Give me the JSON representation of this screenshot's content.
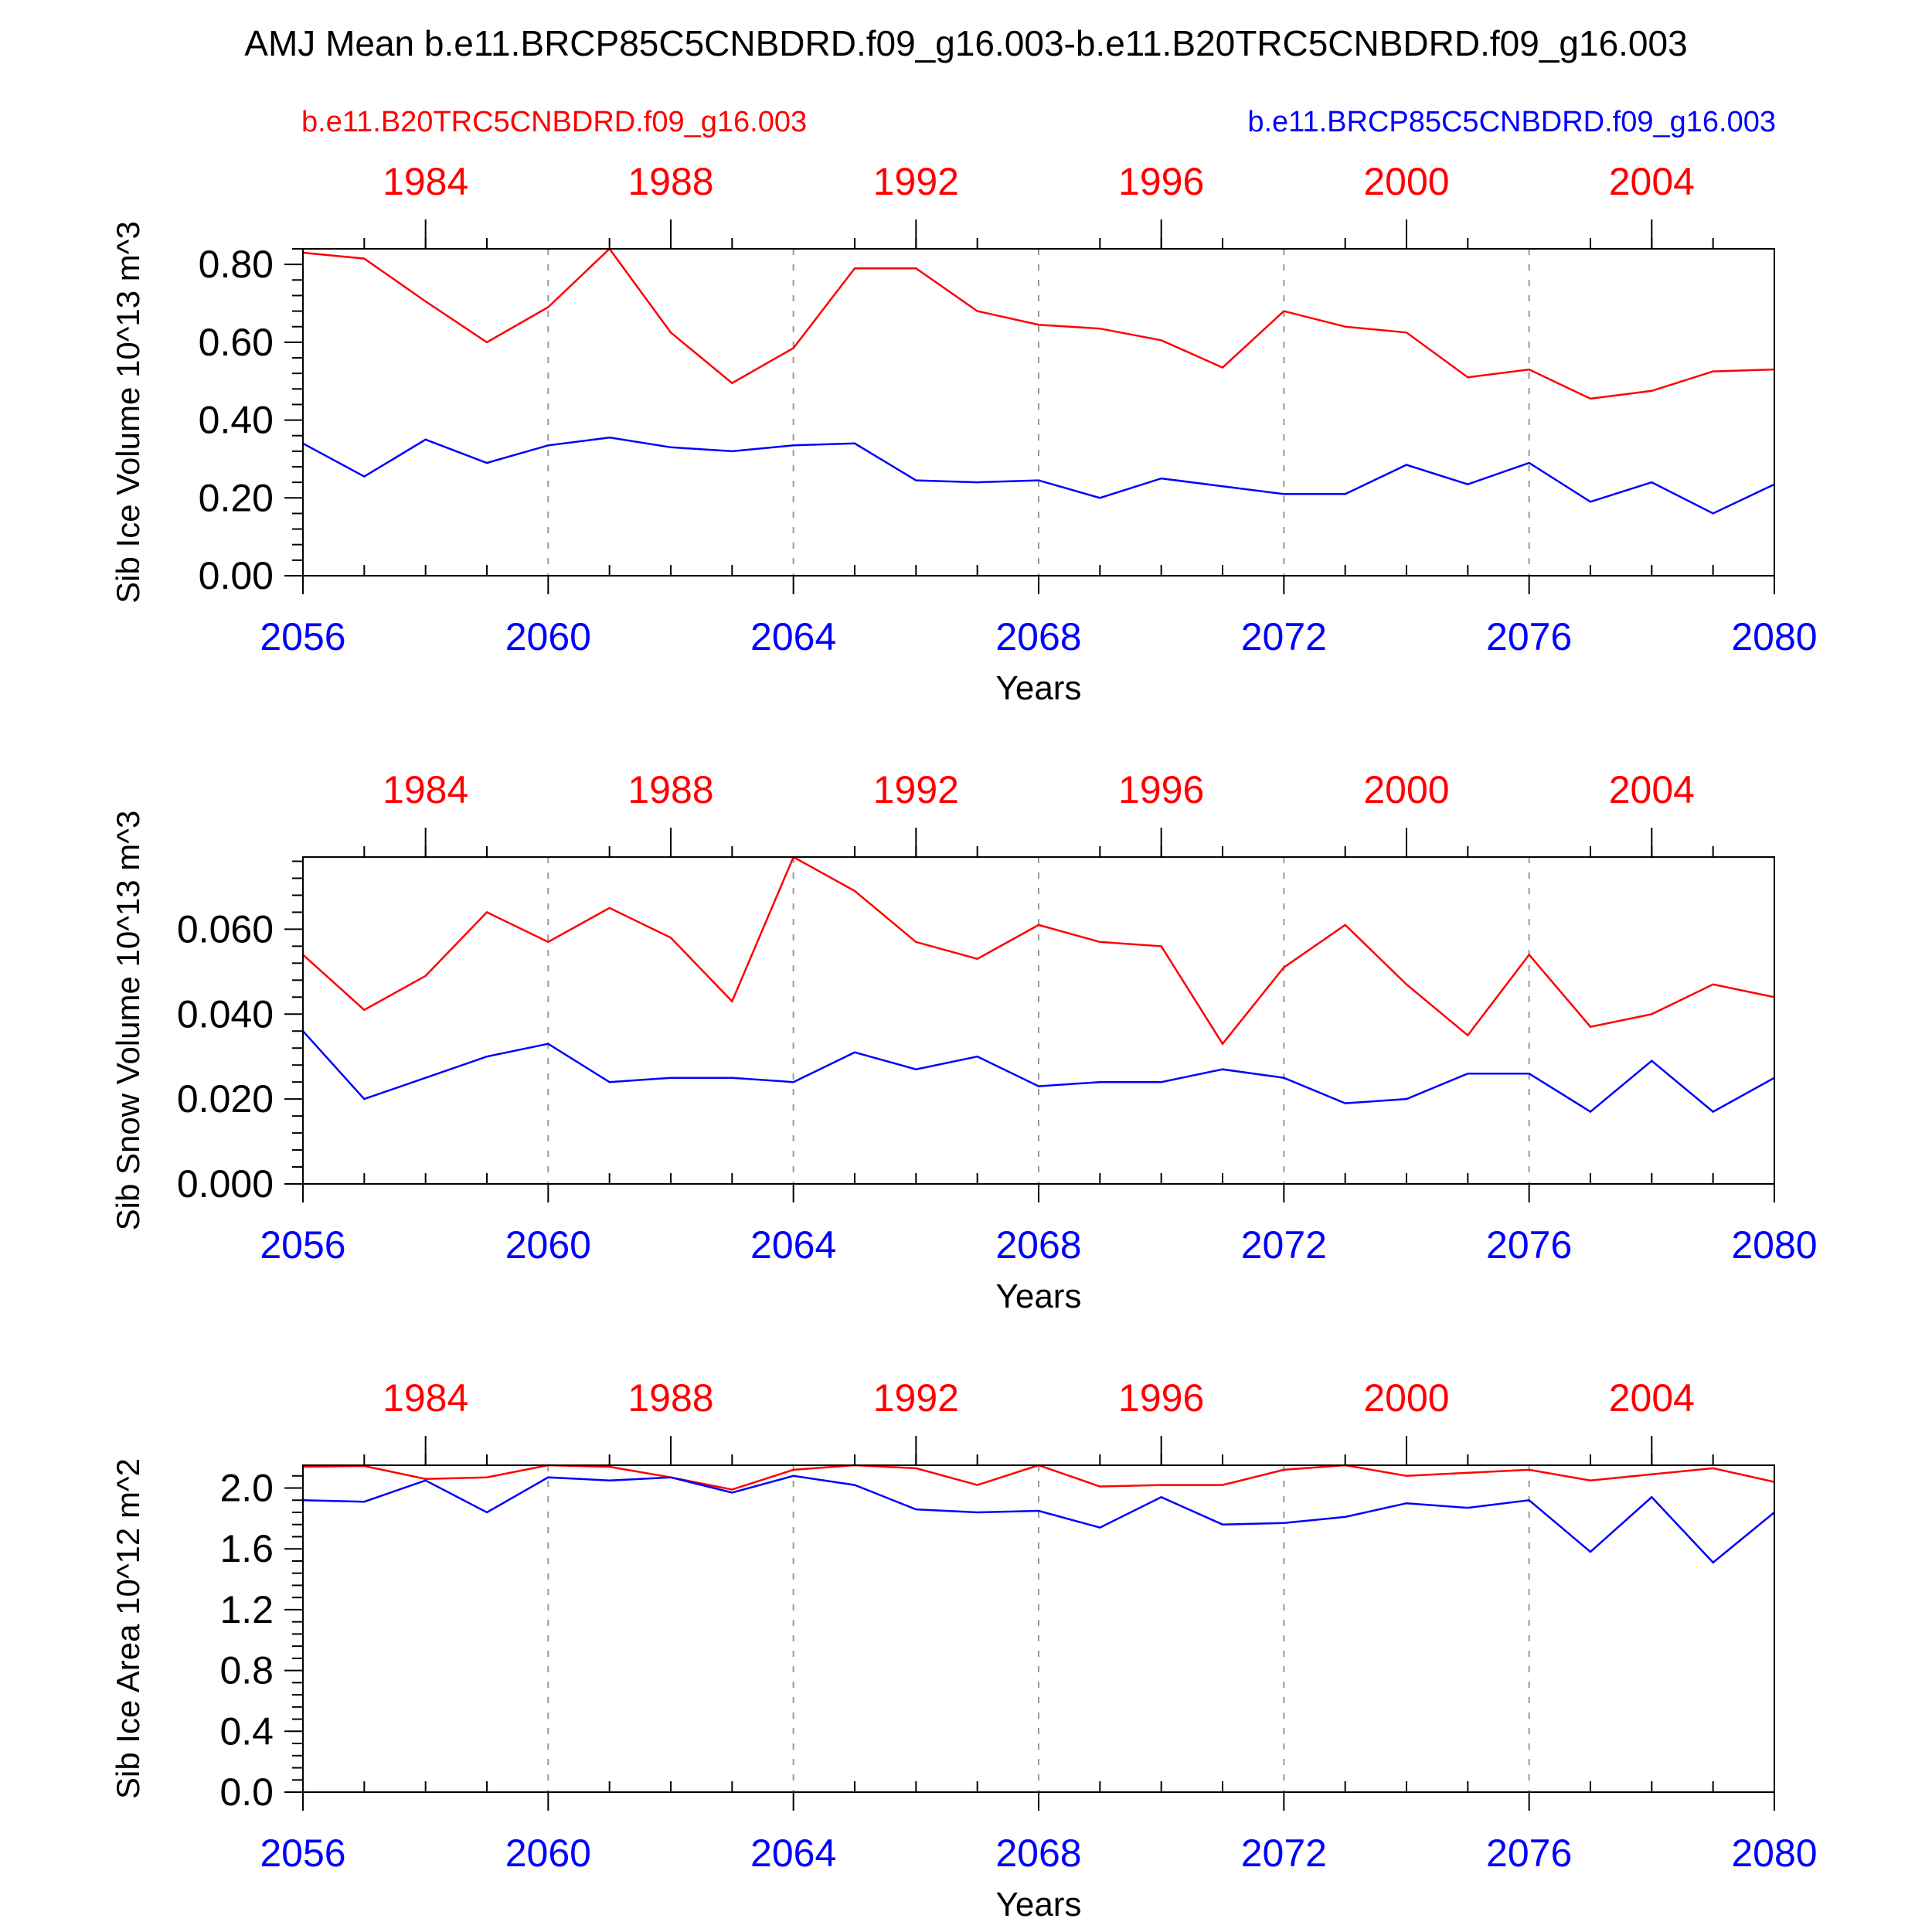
{
  "title": "AMJ Mean b.e11.BRCP85C5CNBDRD.f09_g16.003-b.e11.B20TRC5CNBDRD.f09_g16.003",
  "legend": {
    "red": "b.e11.B20TRC5CNBDRD.f09_g16.003",
    "blue": "b.e11.BRCP85C5CNBDRD.f09_g16.003"
  },
  "colors": {
    "red": "#ff0000",
    "blue": "#0000ff",
    "axis": "#000000",
    "grid": "#999999"
  },
  "chart_data": [
    {
      "type": "line",
      "ylabel": "Sib Ice Volume 10^13 m^3",
      "xlabel": "Years",
      "xlim": [
        2056,
        2080
      ],
      "ylim": [
        0,
        0.84
      ],
      "yticks": [
        "0.00",
        "0.20",
        "0.40",
        "0.60",
        "0.80"
      ],
      "bottom_xticks": [
        "2056",
        "2060",
        "2064",
        "2068",
        "2072",
        "2076",
        "2080"
      ],
      "top_xticks": [
        "1984",
        "1988",
        "1992",
        "1996",
        "2000",
        "2004"
      ],
      "x": [
        2056,
        2057,
        2058,
        2059,
        2060,
        2061,
        2062,
        2063,
        2064,
        2065,
        2066,
        2067,
        2068,
        2069,
        2070,
        2071,
        2072,
        2073,
        2074,
        2075,
        2076,
        2077,
        2078,
        2079,
        2080
      ],
      "series": [
        {
          "name": "b.e11.B20TRC5CNBDRD.f09_g16.003",
          "color": "red",
          "values": [
            0.83,
            0.815,
            0.705,
            0.6,
            0.69,
            0.84,
            0.625,
            0.495,
            0.585,
            0.79,
            0.79,
            0.68,
            0.645,
            0.635,
            0.605,
            0.535,
            0.68,
            0.64,
            0.625,
            0.51,
            0.53,
            0.455,
            0.475,
            0.525,
            0.53
          ]
        },
        {
          "name": "b.e11.BRCP85C5CNBDRD.f09_g16.003",
          "color": "blue",
          "values": [
            0.34,
            0.255,
            0.35,
            0.29,
            0.335,
            0.355,
            0.33,
            0.32,
            0.335,
            0.34,
            0.245,
            0.24,
            0.245,
            0.2,
            0.25,
            0.23,
            0.21,
            0.21,
            0.285,
            0.235,
            0.29,
            0.19,
            0.24,
            0.16,
            0.235
          ]
        }
      ]
    },
    {
      "type": "line",
      "ylabel": "Sib Snow Volume 10^13 m^3",
      "xlabel": "Years",
      "xlim": [
        2056,
        2080
      ],
      "ylim": [
        0,
        0.077
      ],
      "yticks": [
        "0.000",
        "0.020",
        "0.040",
        "0.060"
      ],
      "bottom_xticks": [
        "2056",
        "2060",
        "2064",
        "2068",
        "2072",
        "2076",
        "2080"
      ],
      "top_xticks": [
        "1984",
        "1988",
        "1992",
        "1996",
        "2000",
        "2004"
      ],
      "x": [
        2056,
        2057,
        2058,
        2059,
        2060,
        2061,
        2062,
        2063,
        2064,
        2065,
        2066,
        2067,
        2068,
        2069,
        2070,
        2071,
        2072,
        2073,
        2074,
        2075,
        2076,
        2077,
        2078,
        2079,
        2080
      ],
      "series": [
        {
          "name": "b.e11.B20TRC5CNBDRD.f09_g16.003",
          "color": "red",
          "values": [
            0.054,
            0.041,
            0.049,
            0.064,
            0.057,
            0.065,
            0.058,
            0.043,
            0.077,
            0.069,
            0.057,
            0.053,
            0.061,
            0.057,
            0.056,
            0.033,
            0.051,
            0.061,
            0.047,
            0.035,
            0.054,
            0.037,
            0.04,
            0.047,
            0.044
          ]
        },
        {
          "name": "b.e11.BRCP85C5CNBDRD.f09_g16.003",
          "color": "blue",
          "values": [
            0.036,
            0.02,
            0.025,
            0.03,
            0.033,
            0.024,
            0.025,
            0.025,
            0.024,
            0.031,
            0.027,
            0.03,
            0.023,
            0.024,
            0.024,
            0.027,
            0.025,
            0.019,
            0.02,
            0.026,
            0.026,
            0.017,
            0.029,
            0.017,
            0.025
          ]
        }
      ]
    },
    {
      "type": "line",
      "ylabel": "Sib Ice Area 10^12 m^2",
      "xlabel": "Years",
      "xlim": [
        2056,
        2080
      ],
      "ylim": [
        0,
        2.15
      ],
      "yticks": [
        "0.0",
        "0.4",
        "0.8",
        "1.2",
        "1.6",
        "2.0"
      ],
      "bottom_xticks": [
        "2056",
        "2060",
        "2064",
        "2068",
        "2072",
        "2076",
        "2080"
      ],
      "top_xticks": [
        "1984",
        "1988",
        "1992",
        "1996",
        "2000",
        "2004"
      ],
      "x": [
        2056,
        2057,
        2058,
        2059,
        2060,
        2061,
        2062,
        2063,
        2064,
        2065,
        2066,
        2067,
        2068,
        2069,
        2070,
        2071,
        2072,
        2073,
        2074,
        2075,
        2076,
        2077,
        2078,
        2079,
        2080
      ],
      "series": [
        {
          "name": "b.e11.B20TRC5CNBDRD.f09_g16.003",
          "color": "red",
          "values": [
            2.14,
            2.145,
            2.06,
            2.07,
            2.15,
            2.14,
            2.07,
            1.99,
            2.12,
            2.15,
            2.13,
            2.02,
            2.15,
            2.01,
            2.02,
            2.02,
            2.12,
            2.15,
            2.08,
            2.1,
            2.12,
            2.05,
            2.09,
            2.13,
            2.04
          ]
        },
        {
          "name": "b.e11.BRCP85C5CNBDRD.f09_g16.003",
          "color": "blue",
          "values": [
            1.92,
            1.91,
            2.05,
            1.84,
            2.07,
            2.05,
            2.07,
            1.97,
            2.08,
            2.02,
            1.86,
            1.84,
            1.85,
            1.74,
            1.94,
            1.76,
            1.77,
            1.81,
            1.9,
            1.87,
            1.92,
            1.58,
            1.94,
            1.51,
            1.84
          ]
        }
      ]
    }
  ]
}
